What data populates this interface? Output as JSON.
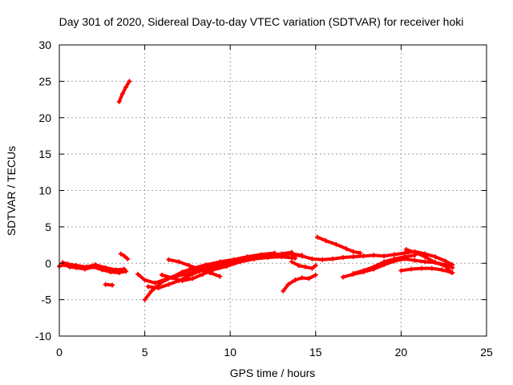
{
  "chart_data": {
    "type": "scatter",
    "title": "Day 301 of 2020, Sidereal Day-to-day VTEC variation (SDTVAR) for receiver hoki",
    "xlabel": "GPS time / hours",
    "ylabel": "SDTVAR / TECUs",
    "xlim": [
      0,
      25
    ],
    "ylim": [
      -10,
      30
    ],
    "xticks": [
      0,
      5,
      10,
      15,
      20,
      25
    ],
    "yticks": [
      -10,
      -5,
      0,
      5,
      10,
      15,
      20,
      25,
      30
    ],
    "grid": true,
    "colors": {
      "series": "#ff0000",
      "grid": "#a0a0a0",
      "frame": "#000000"
    },
    "series": [
      {
        "name": "s1",
        "x": [
          0,
          0.3,
          0.6,
          1.0,
          1.5,
          2.0,
          2.5,
          3.0,
          3.5,
          3.9
        ],
        "y": [
          -0.4,
          -0.2,
          -0.5,
          -0.6,
          -0.8,
          -0.5,
          -0.9,
          -1.2,
          -1.3,
          -1.1
        ]
      },
      {
        "name": "s2",
        "x": [
          0.2,
          0.5,
          1.0,
          1.6,
          2.1,
          2.7,
          3.3,
          3.8
        ],
        "y": [
          0.1,
          -0.1,
          -0.3,
          -0.5,
          -0.2,
          -0.6,
          -0.9,
          -0.8
        ]
      },
      {
        "name": "s3",
        "x": [
          2.7,
          3.1
        ],
        "y": [
          -2.9,
          -3.0
        ]
      },
      {
        "name": "s4",
        "x": [
          3.5,
          3.7,
          3.9,
          4.1
        ],
        "y": [
          22.2,
          23.3,
          24.2,
          25.0
        ]
      },
      {
        "name": "s5",
        "x": [
          3.6,
          3.8,
          4.0
        ],
        "y": [
          1.3,
          1.0,
          0.6
        ]
      },
      {
        "name": "s6",
        "x": [
          4.6,
          5.0,
          5.6,
          6.2,
          6.8,
          7.4,
          8.0,
          8.8,
          9.6,
          10.4,
          11.2,
          12.0,
          12.8,
          13.6,
          14.2
        ],
        "y": [
          -1.5,
          -2.3,
          -2.7,
          -2.2,
          -1.8,
          -1.5,
          -1.0,
          -0.5,
          0.1,
          0.4,
          0.7,
          0.9,
          1.1,
          1.3,
          1.1
        ]
      },
      {
        "name": "s7",
        "x": [
          5.0,
          5.4,
          6.0,
          6.6,
          7.2,
          7.8,
          8.6,
          9.4,
          10.2,
          11.0,
          11.8,
          12.6
        ],
        "y": [
          -5.0,
          -3.8,
          -2.6,
          -1.9,
          -1.2,
          -0.7,
          -0.2,
          0.2,
          0.5,
          0.9,
          1.2,
          1.4
        ]
      },
      {
        "name": "s8",
        "x": [
          5.2,
          5.8,
          6.4,
          7.0,
          7.6,
          8.2,
          9.0,
          9.8,
          10.6,
          11.4,
          12.2,
          13.0,
          13.8
        ],
        "y": [
          -3.2,
          -3.4,
          -2.9,
          -2.4,
          -1.7,
          -1.1,
          -0.6,
          -0.1,
          0.3,
          0.6,
          0.8,
          0.9,
          0.7
        ]
      },
      {
        "name": "s9",
        "x": [
          6.4,
          7.0,
          7.6,
          8.2,
          8.8,
          9.4
        ],
        "y": [
          0.5,
          0.2,
          -0.3,
          -0.8,
          -1.3,
          -1.8
        ]
      },
      {
        "name": "s10",
        "x": [
          6.0,
          6.6,
          7.2,
          7.8,
          8.4,
          9.0,
          9.8,
          10.6,
          11.4,
          12.2,
          13.0,
          13.6
        ],
        "y": [
          -1.6,
          -2.0,
          -2.4,
          -2.1,
          -1.5,
          -0.9,
          -0.4,
          0.2,
          0.6,
          1.0,
          1.3,
          1.5
        ]
      },
      {
        "name": "s11",
        "x": [
          13.1,
          13.4,
          13.8,
          14.2,
          14.6,
          15.0
        ],
        "y": [
          -3.8,
          -2.9,
          -2.3,
          -2.0,
          -2.1,
          -1.6
        ]
      },
      {
        "name": "s12",
        "x": [
          13.6,
          14.0,
          14.4,
          14.8,
          15.0
        ],
        "y": [
          0.2,
          -0.3,
          -0.5,
          -0.7,
          -0.3
        ]
      },
      {
        "name": "s13",
        "x": [
          13.6,
          14.2,
          14.8,
          15.4,
          16.0,
          16.6,
          17.2,
          17.8,
          18.4,
          19.0,
          19.6,
          20.2,
          20.8,
          21.4,
          22.0,
          22.6,
          23.0
        ],
        "y": [
          1.2,
          1.0,
          0.6,
          0.5,
          0.6,
          0.8,
          0.9,
          1.0,
          1.1,
          1.0,
          1.2,
          1.4,
          1.6,
          1.3,
          0.9,
          0.3,
          -0.2
        ]
      },
      {
        "name": "s14",
        "x": [
          15.1,
          15.6,
          16.2,
          16.8,
          17.2,
          17.6
        ],
        "y": [
          3.6,
          3.1,
          2.6,
          2.0,
          1.6,
          1.4
        ]
      },
      {
        "name": "s15",
        "x": [
          16.6,
          17.2,
          17.8,
          18.4,
          19.0,
          19.6,
          20.2,
          20.8,
          21.4,
          22.0,
          22.6,
          23.0
        ],
        "y": [
          -1.9,
          -1.5,
          -1.2,
          -0.8,
          -0.2,
          0.3,
          0.6,
          0.4,
          0.2,
          0.1,
          -0.2,
          -0.6
        ]
      },
      {
        "name": "s16",
        "x": [
          20.0,
          20.6,
          21.2,
          21.8,
          22.4,
          23.0
        ],
        "y": [
          -1.0,
          -0.8,
          -0.7,
          -0.7,
          -0.9,
          -1.3
        ]
      },
      {
        "name": "s17",
        "x": [
          20.3,
          20.8,
          21.4,
          22.0,
          22.6,
          22.9
        ],
        "y": [
          1.9,
          1.5,
          0.9,
          0.1,
          -0.4,
          -1.2
        ]
      },
      {
        "name": "s18",
        "x": [
          17.2,
          17.8,
          18.4,
          19.0,
          19.6,
          20.2,
          20.8
        ],
        "y": [
          -1.4,
          -1.0,
          -0.5,
          0.2,
          0.6,
          0.9,
          1.1
        ]
      }
    ]
  }
}
